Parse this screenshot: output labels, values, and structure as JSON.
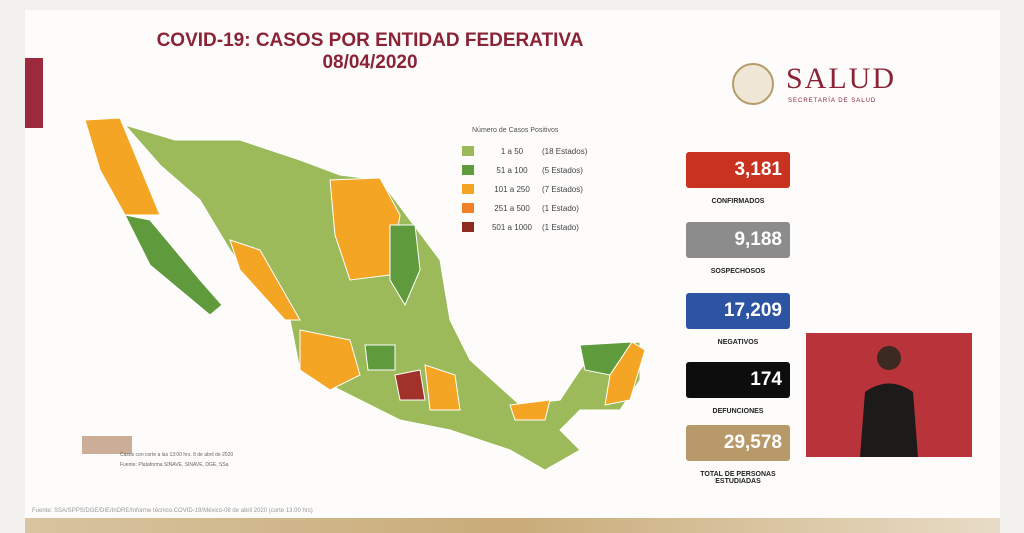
{
  "header": {
    "title": "COVID-19: CASOS POR ENTIDAD FEDERATIVA",
    "date": "08/04/2020"
  },
  "logo": {
    "name": "SALUD",
    "subtitle": "SECRETARÍA DE SALUD"
  },
  "legend": {
    "title": "Número de Casos Positivos",
    "items": [
      {
        "range": "1 a 50",
        "states": "(18 Estados)"
      },
      {
        "range": "51 a 100",
        "states": "(5 Estados)"
      },
      {
        "range": "101 a 250",
        "states": "(7 Estados)"
      },
      {
        "range": "251 a 500",
        "states": "(1 Estado)"
      },
      {
        "range": "501 a 1000",
        "states": "(1 Estado)"
      }
    ]
  },
  "stats": [
    {
      "value": "3,181",
      "label": "CONFIRMADOS"
    },
    {
      "value": "9,188",
      "label": "SOSPECHOSOS"
    },
    {
      "value": "17,209",
      "label": "NEGATIVOS"
    },
    {
      "value": "174",
      "label": "DEFUNCIONES"
    },
    {
      "value": "29,578",
      "label": "TOTAL DE PERSONAS ESTUDIADAS"
    }
  ],
  "notes": [
    "Casos con corte a las 13:00 hrs. 8 de abril de 2020",
    "Fuente: Plataforma SINAVE, SINAVE, DGE, SSa"
  ],
  "source": "Fuente: SSA/SPPS/DGE/DIE/InDRE/Informe técnico.COVID-19/México-08 de abril 2020 (corte 13:00 hrs)"
}
